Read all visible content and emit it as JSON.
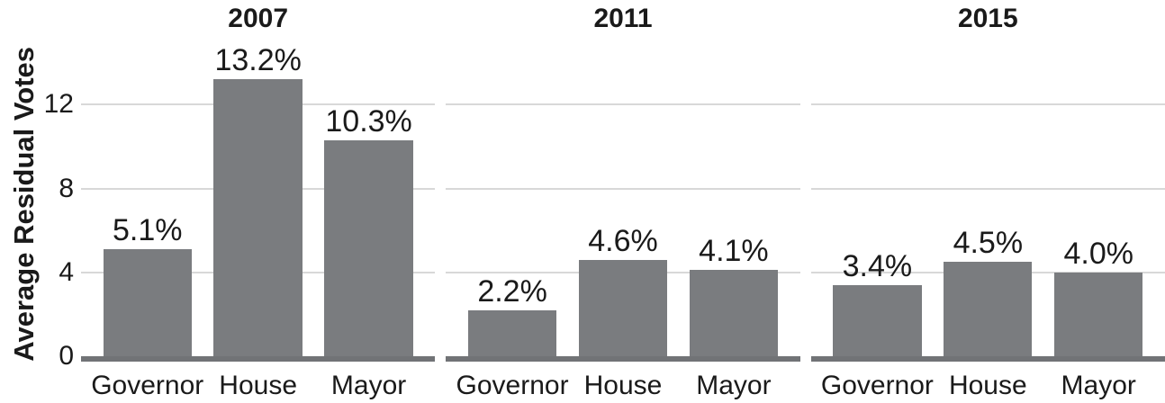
{
  "chart_data": {
    "type": "bar",
    "title": "",
    "ylabel": "Average Residual Votes",
    "xlabel": "",
    "categories": [
      "Governor",
      "House",
      "Mayor"
    ],
    "yticks": [
      0,
      4,
      8,
      12
    ],
    "ylim": [
      0,
      15.1
    ],
    "grid": "horizontal",
    "legend": "none",
    "facets": [
      {
        "title": "2007",
        "values": [
          5.1,
          13.2,
          10.3
        ],
        "value_labels": [
          "5.1%",
          "13.2%",
          "10.3%"
        ]
      },
      {
        "title": "2011",
        "values": [
          2.2,
          4.6,
          4.1
        ],
        "value_labels": [
          "2.2%",
          "4.6%",
          "4.1%"
        ]
      },
      {
        "title": "2015",
        "values": [
          3.4,
          4.5,
          4.0
        ],
        "value_labels": [
          "3.4%",
          "4.5%",
          "4.0%"
        ]
      }
    ],
    "colors": {
      "bar": "#7a7c7f",
      "baseline": "#717376",
      "gridline": "#d8d8d8",
      "text": "#1a1a1a"
    }
  }
}
